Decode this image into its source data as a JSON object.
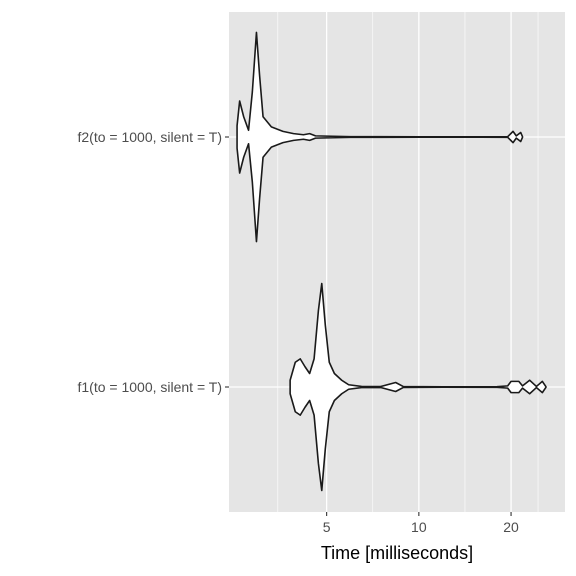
{
  "chart_data": {
    "type": "violin",
    "orientation": "horizontal",
    "xlabel": "Time [milliseconds]",
    "ylabel": "",
    "x_scale": "log",
    "x_ticks": [
      5,
      10,
      20
    ],
    "xlim": [
      2.4,
      30
    ],
    "grid": true,
    "background": "#e5e5e5",
    "grid_color": "#ffffff",
    "outline_color": "#1a1a1a",
    "fill_color": "#ffffff",
    "categories": [
      "f2(to = 1000, silent = T)",
      "f1(to = 1000, silent = T)"
    ],
    "series": [
      {
        "profile": [
          [
            2.55,
            0.1
          ],
          [
            2.6,
            0.32
          ],
          [
            2.68,
            0.18
          ],
          [
            2.78,
            0.06
          ],
          [
            2.86,
            0.4
          ],
          [
            2.95,
            0.93
          ],
          [
            3.02,
            0.55
          ],
          [
            3.1,
            0.18
          ],
          [
            3.3,
            0.09
          ],
          [
            3.6,
            0.05
          ],
          [
            3.9,
            0.03
          ],
          [
            4.2,
            0.02
          ],
          [
            4.4,
            0.03
          ],
          [
            4.6,
            0.01
          ],
          [
            6,
            0.003
          ],
          [
            10,
            0.002
          ],
          [
            16,
            0.002
          ],
          [
            19.5,
            0.003
          ],
          [
            20.3,
            0.05
          ],
          [
            20.8,
            0.01
          ],
          [
            21.5,
            0.04
          ],
          [
            21.8,
            0.003
          ]
        ]
      },
      {
        "profile": [
          [
            3.8,
            0.06
          ],
          [
            3.95,
            0.22
          ],
          [
            4.1,
            0.25
          ],
          [
            4.25,
            0.18
          ],
          [
            4.4,
            0.12
          ],
          [
            4.55,
            0.25
          ],
          [
            4.7,
            0.68
          ],
          [
            4.82,
            0.92
          ],
          [
            4.95,
            0.55
          ],
          [
            5.1,
            0.22
          ],
          [
            5.3,
            0.12
          ],
          [
            5.6,
            0.06
          ],
          [
            5.9,
            0.02
          ],
          [
            6.5,
            0.005
          ],
          [
            7.5,
            0.004
          ],
          [
            8.4,
            0.04
          ],
          [
            8.9,
            0.004
          ],
          [
            12,
            0.002
          ],
          [
            18,
            0.003
          ],
          [
            19.5,
            0.01
          ],
          [
            20.0,
            0.05
          ],
          [
            21.2,
            0.05
          ],
          [
            21.8,
            0.01
          ],
          [
            23.0,
            0.06
          ],
          [
            24.2,
            0.005
          ],
          [
            25.3,
            0.05
          ],
          [
            26.0,
            0.003
          ]
        ]
      }
    ]
  }
}
